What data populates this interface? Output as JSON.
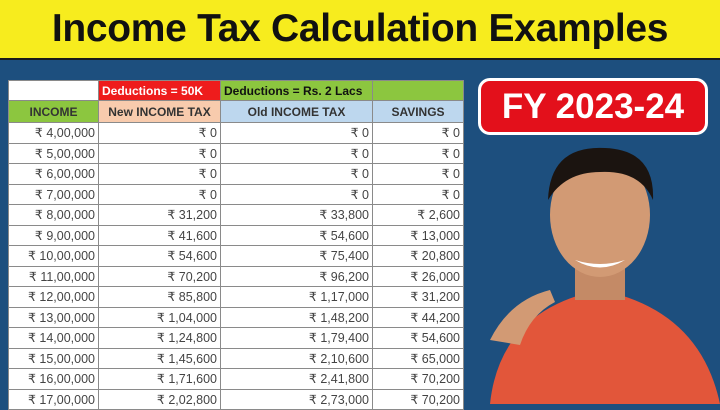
{
  "title": "Income Tax Calculation Examples",
  "badge": "FY 2023-24",
  "table": {
    "deduction_new": "Deductions = 50K",
    "deduction_old": "Deductions = Rs. 2 Lacs",
    "headers": [
      "INCOME",
      "New INCOME TAX",
      "Old INCOME TAX",
      "SAVINGS"
    ],
    "rows": [
      [
        "₹ 4,00,000",
        "₹ 0",
        "₹ 0",
        "₹ 0"
      ],
      [
        "₹ 5,00,000",
        "₹ 0",
        "₹ 0",
        "₹ 0"
      ],
      [
        "₹ 6,00,000",
        "₹ 0",
        "₹ 0",
        "₹ 0"
      ],
      [
        "₹ 7,00,000",
        "₹ 0",
        "₹ 0",
        "₹ 0"
      ],
      [
        "₹ 8,00,000",
        "₹ 31,200",
        "₹ 33,800",
        "₹ 2,600"
      ],
      [
        "₹ 9,00,000",
        "₹ 41,600",
        "₹ 54,600",
        "₹ 13,000"
      ],
      [
        "₹ 10,00,000",
        "₹ 54,600",
        "₹ 75,400",
        "₹ 20,800"
      ],
      [
        "₹ 11,00,000",
        "₹ 70,200",
        "₹ 96,200",
        "₹ 26,000"
      ],
      [
        "₹ 12,00,000",
        "₹ 85,800",
        "₹ 1,17,000",
        "₹ 31,200"
      ],
      [
        "₹ 13,00,000",
        "₹ 1,04,000",
        "₹ 1,48,200",
        "₹ 44,200"
      ],
      [
        "₹ 14,00,000",
        "₹ 1,24,800",
        "₹ 1,79,400",
        "₹ 54,600"
      ],
      [
        "₹ 15,00,000",
        "₹ 1,45,600",
        "₹ 2,10,600",
        "₹ 65,000"
      ],
      [
        "₹ 16,00,000",
        "₹ 1,71,600",
        "₹ 2,41,800",
        "₹ 70,200"
      ],
      [
        "₹ 17,00,000",
        "₹ 2,02,800",
        "₹ 2,73,000",
        "₹ 70,200"
      ]
    ]
  },
  "colors": {
    "banner": "#f7ec1e",
    "background": "#1d4f7e",
    "badge": "#e3101b",
    "deduction_new": "#ee1c1c",
    "deduction_old": "#8cc63f",
    "header_income": "#8cc63f",
    "header_new": "#f8cbad",
    "header_old": "#bdd7ee",
    "header_savings": "#bdd7ee"
  }
}
